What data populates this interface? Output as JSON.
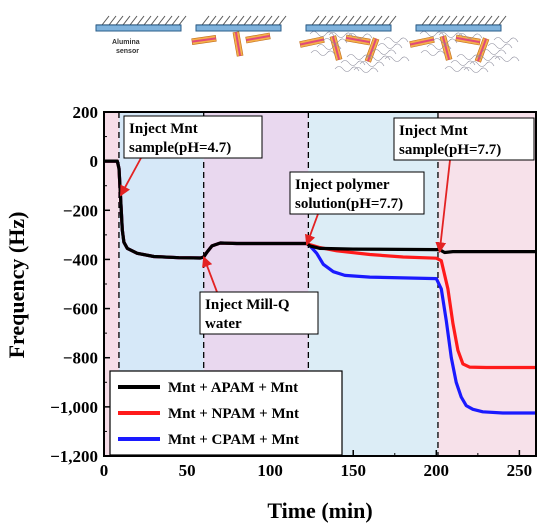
{
  "colors": {
    "region_pink": "#f6dde8",
    "region_blue": "#d6e8f8",
    "region_purple": "#e9d8ef",
    "region_cyan": "#dcedf6",
    "region_pink2": "#f7e1ea",
    "APAM": "#000000",
    "NPAM": "#ff1a1a",
    "CPAM": "#1a1aff",
    "arrow": "#e32222"
  },
  "schematic": {
    "sensor_label_line1": "Alumina",
    "sensor_label_line2": "sensor"
  },
  "chart_data": {
    "type": "line",
    "xlabel": "Time (min)",
    "ylabel": "Frequency (Hz)",
    "xlim": [
      0,
      260
    ],
    "ylim": [
      -1200,
      200
    ],
    "xticks": [
      0,
      50,
      100,
      150,
      200,
      250
    ],
    "xtick_labels": [
      "0",
      "50",
      "100",
      "150",
      "200",
      "250"
    ],
    "yticks": [
      200,
      0,
      -200,
      -400,
      -600,
      -800,
      -1000,
      -1200
    ],
    "ytick_labels": [
      "200",
      "0",
      "−200",
      "−400",
      "−600",
      "−800",
      "−1,000",
      "−1,200"
    ],
    "injection_times": [
      9,
      60,
      123,
      201
    ],
    "regions": [
      {
        "x0": 0,
        "x1": 9,
        "color": "region_pink"
      },
      {
        "x0": 9,
        "x1": 60,
        "color": "region_blue"
      },
      {
        "x0": 60,
        "x1": 123,
        "color": "region_purple"
      },
      {
        "x0": 123,
        "x1": 201,
        "color": "region_cyan"
      },
      {
        "x0": 201,
        "x1": 260,
        "color": "region_pink2"
      }
    ],
    "annotations": [
      {
        "lines": [
          "Inject Mnt",
          "sample(pH=4.7)"
        ],
        "target": [
          10,
          -140
        ]
      },
      {
        "lines": [
          "Inject Mill-Q",
          "water"
        ],
        "target": [
          60,
          -390
        ]
      },
      {
        "lines": [
          "Inject polymer",
          "solution(pH=7.7)"
        ],
        "target": [
          122,
          -340
        ]
      },
      {
        "lines": [
          "Inject Mnt",
          "sample(pH=7.7)"
        ],
        "target": [
          202,
          -370
        ]
      }
    ],
    "legend_position": "bottom-left",
    "series": [
      {
        "name": "Mnt + APAM + Mnt",
        "color": "APAM",
        "x": [
          0,
          8,
          9,
          10,
          11,
          12,
          14,
          20,
          30,
          45,
          58,
          60,
          62,
          65,
          70,
          80,
          100,
          122,
          124,
          130,
          150,
          200,
          202,
          205,
          210,
          230,
          260
        ],
        "y": [
          0,
          0,
          -30,
          -150,
          -280,
          -330,
          -355,
          -375,
          -388,
          -393,
          -394,
          -390,
          -370,
          -345,
          -333,
          -335,
          -335,
          -335,
          -345,
          -355,
          -358,
          -360,
          -360,
          -372,
          -368,
          -368,
          -368
        ]
      },
      {
        "name": "Mnt + NPAM + Mnt",
        "color": "NPAM",
        "x": [
          0,
          8,
          9,
          10,
          11,
          12,
          14,
          20,
          30,
          45,
          58,
          60,
          62,
          65,
          70,
          80,
          100,
          122,
          124,
          130,
          140,
          160,
          180,
          200,
          203,
          207,
          210,
          213,
          216,
          220,
          230,
          260
        ],
        "y": [
          0,
          0,
          -30,
          -150,
          -280,
          -330,
          -355,
          -375,
          -388,
          -393,
          -394,
          -390,
          -370,
          -345,
          -333,
          -335,
          -335,
          -335,
          -340,
          -352,
          -365,
          -380,
          -390,
          -395,
          -405,
          -520,
          -660,
          -770,
          -825,
          -838,
          -840,
          -840
        ]
      },
      {
        "name": "Mnt + CPAM + Mnt",
        "color": "CPAM",
        "x": [
          0,
          8,
          9,
          10,
          11,
          12,
          14,
          20,
          30,
          45,
          58,
          60,
          62,
          65,
          70,
          80,
          100,
          122,
          124,
          128,
          132,
          138,
          145,
          160,
          180,
          200,
          203,
          206,
          209,
          212,
          215,
          218,
          222,
          228,
          240,
          260
        ],
        "y": [
          0,
          0,
          -30,
          -150,
          -280,
          -330,
          -355,
          -375,
          -388,
          -393,
          -394,
          -390,
          -370,
          -345,
          -333,
          -335,
          -335,
          -335,
          -345,
          -375,
          -420,
          -450,
          -465,
          -472,
          -475,
          -478,
          -520,
          -650,
          -800,
          -900,
          -960,
          -995,
          -1010,
          -1020,
          -1025,
          -1025
        ]
      }
    ]
  }
}
